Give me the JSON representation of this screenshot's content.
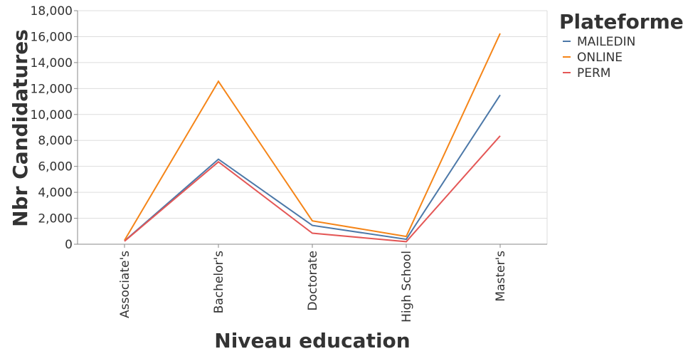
{
  "chart_data": {
    "type": "line",
    "xlabel": "Niveau education",
    "ylabel": "Nbr Candidatures",
    "categories": [
      "Associate's",
      "Bachelor's",
      "Doctorate",
      "High School",
      "Master's"
    ],
    "ylim": [
      0,
      18000
    ],
    "yticks": [
      "0",
      "2,000",
      "4,000",
      "6,000",
      "8,000",
      "10,000",
      "12,000",
      "14,000",
      "16,000",
      "18,000"
    ],
    "grid": true,
    "legend": {
      "title": "Plateforme",
      "position": "top-right"
    },
    "series": [
      {
        "name": "MAILEDIN",
        "color": "#4c78a8",
        "values": [
          250,
          6550,
          1450,
          380,
          11500
        ]
      },
      {
        "name": "ONLINE",
        "color": "#f58518",
        "values": [
          300,
          12550,
          1800,
          600,
          16250
        ]
      },
      {
        "name": "PERM",
        "color": "#e45756",
        "values": [
          230,
          6350,
          850,
          200,
          8350
        ]
      }
    ]
  }
}
